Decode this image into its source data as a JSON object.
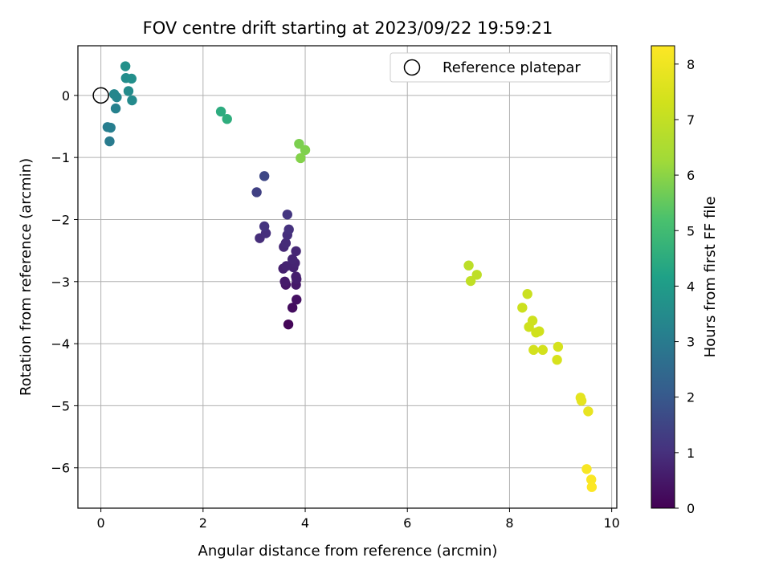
{
  "chart_data": {
    "type": "scatter",
    "title": "FOV centre drift starting at 2023/09/22 19:59:21",
    "xlabel": "Angular distance from reference (arcmin)",
    "ylabel": "Rotation from reference (arcmin)",
    "xlim": [
      -0.45,
      10.1
    ],
    "ylim": [
      -6.65,
      0.8
    ],
    "xticks": [
      0,
      2,
      4,
      6,
      8,
      10
    ],
    "yticks": [
      0,
      -1,
      -2,
      -3,
      -4,
      -5,
      -6
    ],
    "grid": true,
    "legend": {
      "placement": "top-right",
      "entries": [
        "Reference platepar"
      ]
    },
    "reference_point": {
      "x": 0,
      "y": 0
    },
    "colorbar": {
      "label": "Hours from first FF file",
      "range": [
        0,
        8.33
      ],
      "ticks": [
        0,
        1,
        2,
        3,
        4,
        5,
        6,
        7,
        8
      ],
      "colormap": "viridis"
    },
    "points": [
      {
        "x": 3.67,
        "y": -3.69,
        "h": 0.1
      },
      {
        "x": 3.75,
        "y": -3.42,
        "h": 0.25
      },
      {
        "x": 3.83,
        "y": -3.29,
        "h": 0.35
      },
      {
        "x": 3.62,
        "y": -3.05,
        "h": 0.45
      },
      {
        "x": 3.82,
        "y": -3.05,
        "h": 0.5
      },
      {
        "x": 3.6,
        "y": -3.0,
        "h": 0.55
      },
      {
        "x": 3.83,
        "y": -2.96,
        "h": 0.6
      },
      {
        "x": 3.82,
        "y": -2.92,
        "h": 0.62
      },
      {
        "x": 3.57,
        "y": -2.79,
        "h": 0.65
      },
      {
        "x": 3.77,
        "y": -2.77,
        "h": 0.7
      },
      {
        "x": 3.63,
        "y": -2.75,
        "h": 0.72
      },
      {
        "x": 3.8,
        "y": -2.7,
        "h": 0.75
      },
      {
        "x": 3.75,
        "y": -2.64,
        "h": 0.78
      },
      {
        "x": 3.82,
        "y": -2.51,
        "h": 0.82
      },
      {
        "x": 3.58,
        "y": -2.44,
        "h": 0.85
      },
      {
        "x": 3.62,
        "y": -2.38,
        "h": 0.9
      },
      {
        "x": 3.11,
        "y": -2.3,
        "h": 0.95
      },
      {
        "x": 3.65,
        "y": -2.25,
        "h": 0.98
      },
      {
        "x": 3.23,
        "y": -2.22,
        "h": 1.0
      },
      {
        "x": 3.68,
        "y": -2.16,
        "h": 1.05
      },
      {
        "x": 3.2,
        "y": -2.11,
        "h": 1.1
      },
      {
        "x": 3.65,
        "y": -1.92,
        "h": 1.15
      },
      {
        "x": 3.05,
        "y": -1.56,
        "h": 1.4
      },
      {
        "x": 3.2,
        "y": -1.3,
        "h": 1.55
      },
      {
        "x": 0.17,
        "y": -0.74,
        "h": 3.0
      },
      {
        "x": 0.13,
        "y": -0.51,
        "h": 3.05
      },
      {
        "x": 0.19,
        "y": -0.52,
        "h": 3.1
      },
      {
        "x": 0.29,
        "y": -0.21,
        "h": 3.2
      },
      {
        "x": 0.31,
        "y": -0.03,
        "h": 3.3
      },
      {
        "x": 0.26,
        "y": 0.02,
        "h": 3.35
      },
      {
        "x": 0.61,
        "y": -0.08,
        "h": 3.45
      },
      {
        "x": 0.54,
        "y": 0.07,
        "h": 3.5
      },
      {
        "x": 0.49,
        "y": 0.28,
        "h": 3.55
      },
      {
        "x": 0.6,
        "y": 0.27,
        "h": 3.6
      },
      {
        "x": 0.48,
        "y": 0.47,
        "h": 3.65
      },
      {
        "x": 2.35,
        "y": -0.26,
        "h": 4.5
      },
      {
        "x": 2.47,
        "y": -0.38,
        "h": 4.55
      },
      {
        "x": 3.88,
        "y": -0.78,
        "h": 5.8
      },
      {
        "x": 4.0,
        "y": -0.88,
        "h": 5.85
      },
      {
        "x": 3.91,
        "y": -1.01,
        "h": 5.9
      },
      {
        "x": 7.2,
        "y": -2.74,
        "h": 6.85
      },
      {
        "x": 7.36,
        "y": -2.89,
        "h": 6.9
      },
      {
        "x": 7.24,
        "y": -2.99,
        "h": 6.95
      },
      {
        "x": 8.35,
        "y": -3.2,
        "h": 7.15
      },
      {
        "x": 8.25,
        "y": -3.42,
        "h": 7.2
      },
      {
        "x": 8.45,
        "y": -3.63,
        "h": 7.25
      },
      {
        "x": 8.38,
        "y": -3.73,
        "h": 7.25
      },
      {
        "x": 8.58,
        "y": -3.8,
        "h": 7.3
      },
      {
        "x": 8.52,
        "y": -3.82,
        "h": 7.3
      },
      {
        "x": 8.65,
        "y": -4.1,
        "h": 7.35
      },
      {
        "x": 8.47,
        "y": -4.1,
        "h": 7.35
      },
      {
        "x": 8.95,
        "y": -4.05,
        "h": 7.4
      },
      {
        "x": 8.93,
        "y": -4.26,
        "h": 7.45
      },
      {
        "x": 9.39,
        "y": -4.87,
        "h": 7.75
      },
      {
        "x": 9.41,
        "y": -4.92,
        "h": 7.78
      },
      {
        "x": 9.54,
        "y": -5.09,
        "h": 7.85
      },
      {
        "x": 9.51,
        "y": -6.02,
        "h": 8.2
      },
      {
        "x": 9.6,
        "y": -6.19,
        "h": 8.25
      },
      {
        "x": 9.61,
        "y": -6.31,
        "h": 8.3
      }
    ]
  }
}
